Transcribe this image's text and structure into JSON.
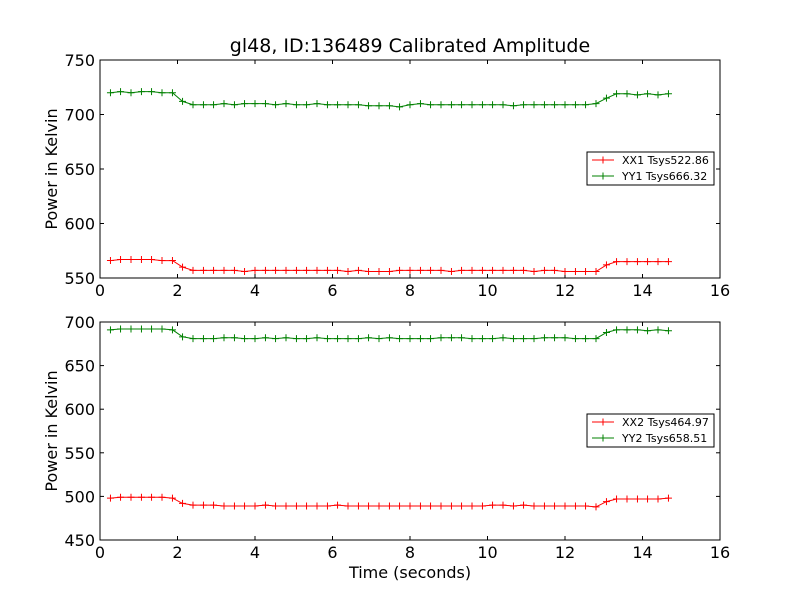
{
  "chart_data": [
    {
      "type": "line",
      "title": "gl48, ID:136489 Calibrated Amplitude",
      "xlabel": "",
      "ylabel": "Power in Kelvin",
      "xlim": [
        0,
        16
      ],
      "ylim": [
        550,
        750
      ],
      "xticks": [
        "0",
        "2",
        "4",
        "6",
        "8",
        "10",
        "12",
        "14",
        "16"
      ],
      "yticks": [
        "550",
        "600",
        "650",
        "700",
        "750"
      ],
      "grid": false,
      "legend_position": "center-right",
      "series": [
        {
          "name": "XX1 Tsys522.86",
          "color": "#ff0000",
          "x": [
            0.27,
            0.53,
            0.8,
            1.07,
            1.33,
            1.6,
            1.87,
            2.13,
            2.4,
            2.67,
            2.93,
            3.2,
            3.47,
            3.73,
            4.0,
            4.27,
            4.53,
            4.8,
            5.07,
            5.33,
            5.6,
            5.87,
            6.13,
            6.4,
            6.67,
            6.93,
            7.2,
            7.47,
            7.73,
            8.0,
            8.27,
            8.53,
            8.8,
            9.07,
            9.33,
            9.6,
            9.87,
            10.13,
            10.4,
            10.67,
            10.93,
            11.2,
            11.47,
            11.73,
            12.0,
            12.27,
            12.53,
            12.8,
            13.07,
            13.33,
            13.6,
            13.87,
            14.13,
            14.4,
            14.67
          ],
          "values": [
            566,
            567,
            567,
            567,
            567,
            566,
            566,
            560,
            557,
            557,
            557,
            557,
            557,
            556,
            557,
            557,
            557,
            557,
            557,
            557,
            557,
            557,
            557,
            556,
            557,
            556,
            556,
            556,
            557,
            557,
            557,
            557,
            557,
            556,
            557,
            557,
            557,
            557,
            557,
            557,
            557,
            556,
            557,
            557,
            556,
            556,
            556,
            556,
            562,
            565,
            565,
            565,
            565,
            565,
            565
          ]
        },
        {
          "name": "YY1 Tsys666.32",
          "color": "#008000",
          "x": [
            0.27,
            0.53,
            0.8,
            1.07,
            1.33,
            1.6,
            1.87,
            2.13,
            2.4,
            2.67,
            2.93,
            3.2,
            3.47,
            3.73,
            4.0,
            4.27,
            4.53,
            4.8,
            5.07,
            5.33,
            5.6,
            5.87,
            6.13,
            6.4,
            6.67,
            6.93,
            7.2,
            7.47,
            7.73,
            8.0,
            8.27,
            8.53,
            8.8,
            9.07,
            9.33,
            9.6,
            9.87,
            10.13,
            10.4,
            10.67,
            10.93,
            11.2,
            11.47,
            11.73,
            12.0,
            12.27,
            12.53,
            12.8,
            13.07,
            13.33,
            13.6,
            13.87,
            14.13,
            14.4,
            14.67
          ],
          "values": [
            720,
            721,
            720,
            721,
            721,
            720,
            720,
            712,
            709,
            709,
            709,
            710,
            709,
            710,
            710,
            710,
            709,
            710,
            709,
            709,
            710,
            709,
            709,
            709,
            709,
            708,
            708,
            708,
            707,
            709,
            710,
            709,
            709,
            709,
            709,
            709,
            709,
            709,
            709,
            708,
            709,
            709,
            709,
            709,
            709,
            709,
            709,
            710,
            715,
            719,
            719,
            718,
            719,
            718,
            719
          ]
        }
      ]
    },
    {
      "type": "line",
      "title": "",
      "xlabel": "Time (seconds)",
      "ylabel": "Power in Kelvin",
      "xlim": [
        0,
        16
      ],
      "ylim": [
        450,
        700
      ],
      "xticks": [
        "0",
        "2",
        "4",
        "6",
        "8",
        "10",
        "12",
        "14",
        "16"
      ],
      "yticks": [
        "450",
        "500",
        "550",
        "600",
        "650",
        "700"
      ],
      "grid": false,
      "legend_position": "center-right",
      "series": [
        {
          "name": "XX2 Tsys464.97",
          "color": "#ff0000",
          "x": [
            0.27,
            0.53,
            0.8,
            1.07,
            1.33,
            1.6,
            1.87,
            2.13,
            2.4,
            2.67,
            2.93,
            3.2,
            3.47,
            3.73,
            4.0,
            4.27,
            4.53,
            4.8,
            5.07,
            5.33,
            5.6,
            5.87,
            6.13,
            6.4,
            6.67,
            6.93,
            7.2,
            7.47,
            7.73,
            8.0,
            8.27,
            8.53,
            8.8,
            9.07,
            9.33,
            9.6,
            9.87,
            10.13,
            10.4,
            10.67,
            10.93,
            11.2,
            11.47,
            11.73,
            12.0,
            12.27,
            12.53,
            12.8,
            13.07,
            13.33,
            13.6,
            13.87,
            14.13,
            14.4,
            14.67
          ],
          "values": [
            498,
            499,
            499,
            499,
            499,
            499,
            498,
            492,
            490,
            490,
            490,
            489,
            489,
            489,
            489,
            490,
            489,
            489,
            489,
            489,
            489,
            489,
            490,
            489,
            489,
            489,
            489,
            489,
            489,
            489,
            489,
            489,
            489,
            489,
            489,
            489,
            489,
            490,
            490,
            489,
            490,
            489,
            489,
            489,
            489,
            489,
            489,
            488,
            494,
            497,
            497,
            497,
            497,
            497,
            498
          ]
        },
        {
          "name": "YY2 Tsys658.51",
          "color": "#008000",
          "x": [
            0.27,
            0.53,
            0.8,
            1.07,
            1.33,
            1.6,
            1.87,
            2.13,
            2.4,
            2.67,
            2.93,
            3.2,
            3.47,
            3.73,
            4.0,
            4.27,
            4.53,
            4.8,
            5.07,
            5.33,
            5.6,
            5.87,
            6.13,
            6.4,
            6.67,
            6.93,
            7.2,
            7.47,
            7.73,
            8.0,
            8.27,
            8.53,
            8.8,
            9.07,
            9.33,
            9.6,
            9.87,
            10.13,
            10.4,
            10.67,
            10.93,
            11.2,
            11.47,
            11.73,
            12.0,
            12.27,
            12.53,
            12.8,
            13.07,
            13.33,
            13.6,
            13.87,
            14.13,
            14.4,
            14.67
          ],
          "values": [
            691,
            692,
            692,
            692,
            692,
            692,
            691,
            683,
            681,
            681,
            681,
            682,
            682,
            681,
            681,
            682,
            681,
            682,
            681,
            681,
            682,
            681,
            681,
            681,
            681,
            682,
            681,
            682,
            681,
            681,
            681,
            681,
            682,
            682,
            682,
            681,
            681,
            681,
            682,
            681,
            681,
            681,
            682,
            682,
            682,
            681,
            681,
            681,
            688,
            691,
            691,
            691,
            690,
            691,
            690
          ]
        }
      ]
    }
  ]
}
